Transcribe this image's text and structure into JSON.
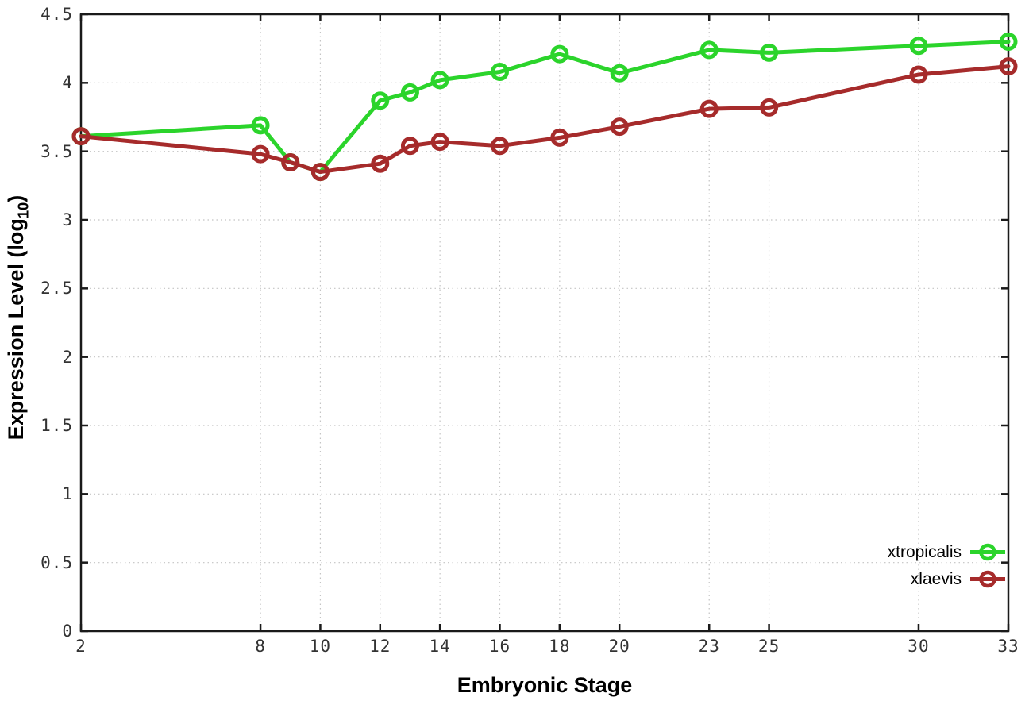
{
  "chart_data": {
    "type": "line",
    "title": "",
    "xlabel": "Embryonic Stage",
    "ylabel": {
      "text": "Expression Level (log10)",
      "main": "Expression Level (log",
      "sub": "10",
      "close": ")"
    },
    "x": [
      2,
      8,
      9,
      10,
      12,
      13,
      14,
      16,
      18,
      20,
      23,
      25,
      30,
      33
    ],
    "series": [
      {
        "name": "xtropicalis",
        "color": "#2bd42b",
        "marker": "open-circle",
        "values": [
          3.61,
          3.69,
          3.42,
          3.35,
          3.87,
          3.93,
          4.02,
          4.08,
          4.21,
          4.07,
          4.24,
          4.22,
          4.27,
          4.3
        ]
      },
      {
        "name": "xlaevis",
        "color": "#a62b2b",
        "marker": "open-circle",
        "values": [
          3.61,
          3.48,
          3.42,
          3.35,
          3.41,
          3.54,
          3.57,
          3.54,
          3.6,
          3.68,
          3.81,
          3.82,
          4.06,
          4.12
        ]
      }
    ],
    "xlim": [
      2,
      33
    ],
    "ylim": [
      0,
      4.5
    ],
    "xticks": {
      "values": [
        2,
        8,
        10,
        12,
        14,
        16,
        18,
        20,
        23,
        25,
        30,
        33
      ],
      "labels": [
        "2",
        "8",
        "10",
        "12",
        "14",
        "16",
        "18",
        "20",
        "23",
        "25",
        "30",
        "33"
      ]
    },
    "yticks": {
      "values": [
        0,
        0.5,
        1,
        1.5,
        2,
        2.5,
        3,
        3.5,
        4,
        4.5
      ],
      "labels": [
        "0",
        "0.5",
        "1",
        "1.5",
        "2",
        "2.5",
        "3",
        "3.5",
        "4",
        "4.5"
      ]
    },
    "grid": true,
    "legend_position": "inside-bottom-right",
    "colors": {
      "axis": "#1a1a1a",
      "grid": "#c4c4c4",
      "tick_label": "#333333",
      "background": "#ffffff"
    }
  }
}
